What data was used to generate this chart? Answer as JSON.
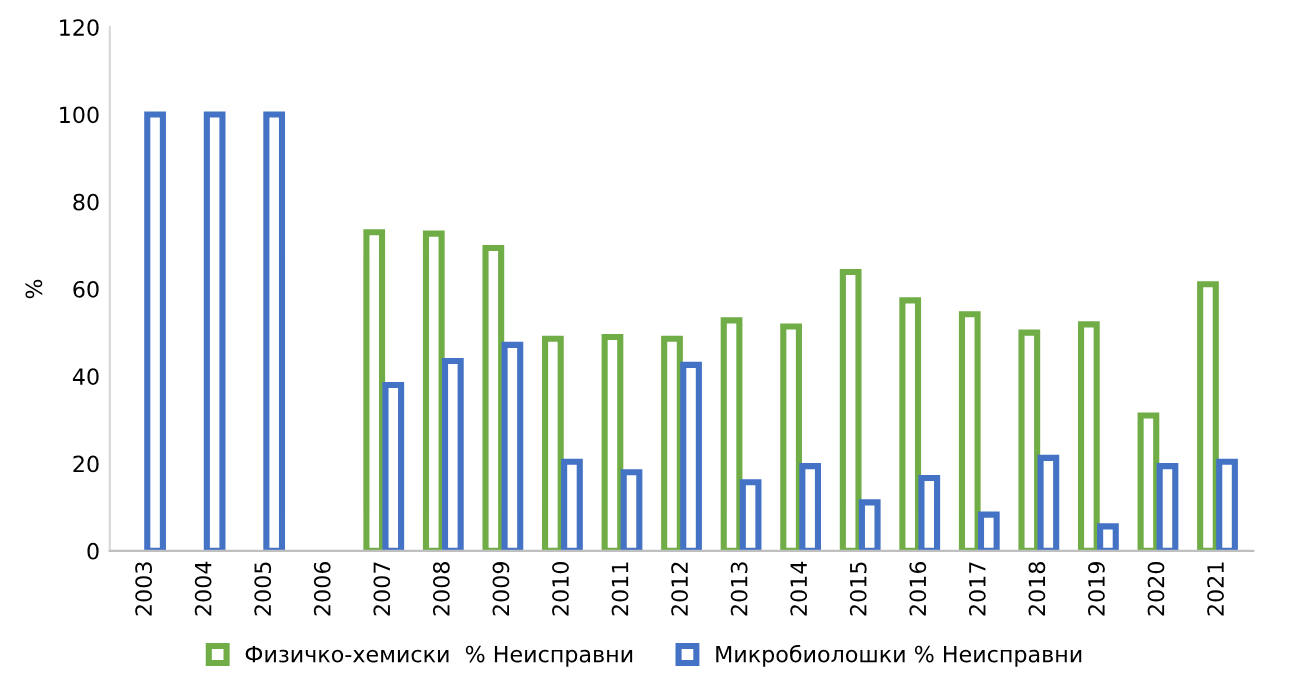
{
  "chart_data": {
    "type": "bar",
    "ylabel": "%",
    "categories": [
      "2003",
      "2004",
      "2005",
      "2006",
      "2007",
      "2008",
      "2009",
      "2010",
      "2011",
      "2012",
      "2013",
      "2014",
      "2015",
      "2016",
      "2017",
      "2018",
      "2019",
      "2020",
      "2021"
    ],
    "series": [
      {
        "name": "Физичко-хемиски  % Неисправни",
        "color": "#70ad47",
        "values": [
          null,
          null,
          null,
          null,
          73,
          72.7,
          69.4,
          48.6,
          49,
          48.6,
          52.8,
          51.4,
          63.9,
          57.4,
          54.2,
          50,
          51.9,
          31,
          61.1
        ]
      },
      {
        "name": "Микробиолошки % Неисправни",
        "color": "#4472c4",
        "values": [
          100,
          100,
          100,
          null,
          38,
          43.5,
          47.2,
          20.4,
          18,
          42.6,
          15.7,
          19.4,
          11.1,
          16.7,
          8.3,
          21.3,
          5.6,
          19.4,
          20.4
        ]
      }
    ],
    "ylim": [
      0,
      120
    ],
    "yticks": [
      0,
      20,
      40,
      60,
      80,
      100,
      120
    ],
    "grid": false,
    "legend": "bottom"
  }
}
